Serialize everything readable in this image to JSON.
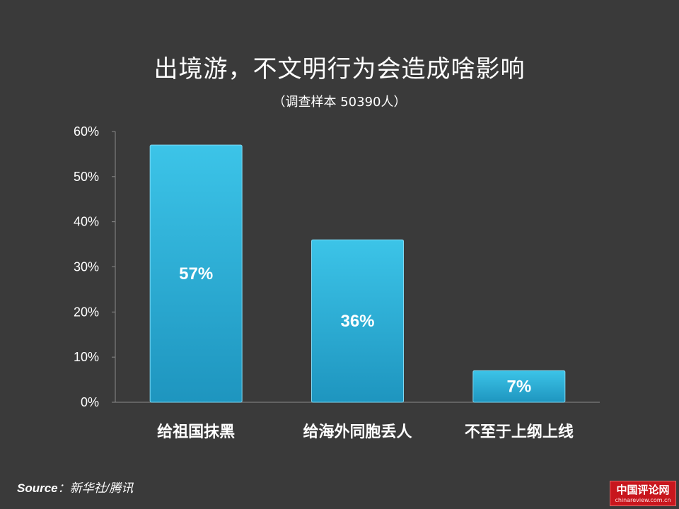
{
  "slide": {
    "title": "出境游，不文明行为会造成啥影响",
    "subtitle": "（调查样本 50390人）",
    "source_key": "Source",
    "source_value": "：新华社/腾讯",
    "logo_text": "中国评论网",
    "logo_url": "chinareview.com.cn"
  },
  "colors": {
    "background": "#3a3a3a",
    "bar_top": "#3cc4e8",
    "bar_bottom": "#1e95bf",
    "text": "#ffffff"
  },
  "chart_data": {
    "type": "bar",
    "title": "出境游，不文明行为会造成啥影响",
    "subtitle": "（调查样本 50390人）",
    "categories": [
      "给祖国抹黑",
      "给海外同胞丢人",
      "不至于上纲上线"
    ],
    "values": [
      57,
      36,
      7
    ],
    "data_labels": [
      "57%",
      "36%",
      "7%"
    ],
    "ylim": [
      0,
      60
    ],
    "yticks": [
      0,
      10,
      20,
      30,
      40,
      50,
      60
    ],
    "ytick_labels": [
      "0%",
      "10%",
      "20%",
      "30%",
      "40%",
      "50%",
      "60%"
    ],
    "xlabel": "",
    "ylabel": "",
    "grid": false,
    "legend": "none"
  }
}
